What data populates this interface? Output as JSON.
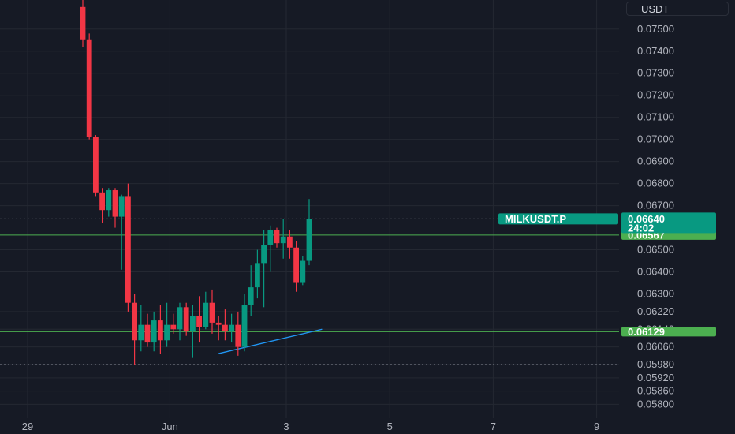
{
  "unit_label": "USDT",
  "colors": {
    "background": "#161a25",
    "up": "#089981",
    "down": "#f23645",
    "level_line": "#4caf50",
    "trend_line": "#2196f3",
    "grid": "#242832",
    "axis_text": "#b2b5be"
  },
  "chart_data": {
    "type": "candlestick",
    "symbol": "MILKUSDT.P",
    "ylim": [
      0.0578,
      0.0756
    ],
    "y_ticks": [
      {
        "label": "0.07500",
        "value": 0.075
      },
      {
        "label": "0.07400",
        "value": 0.074
      },
      {
        "label": "0.07300",
        "value": 0.073
      },
      {
        "label": "0.07200",
        "value": 0.072
      },
      {
        "label": "0.07100",
        "value": 0.071
      },
      {
        "label": "0.07000",
        "value": 0.07
      },
      {
        "label": "0.06900",
        "value": 0.069
      },
      {
        "label": "0.06800",
        "value": 0.068
      },
      {
        "label": "0.06700",
        "value": 0.067
      },
      {
        "label": "0.06500",
        "value": 0.065
      },
      {
        "label": "0.06400",
        "value": 0.064
      },
      {
        "label": "0.06300",
        "value": 0.063
      },
      {
        "label": "0.06220",
        "value": 0.0622
      },
      {
        "label": "0.06140",
        "value": 0.0614
      },
      {
        "label": "0.06060",
        "value": 0.0606
      },
      {
        "label": "0.05980",
        "value": 0.0598
      },
      {
        "label": "0.05920",
        "value": 0.0592
      },
      {
        "label": "0.05860",
        "value": 0.0586
      },
      {
        "label": "0.05800",
        "value": 0.058
      }
    ],
    "x_ticks": [
      {
        "label": "29",
        "index": 0
      },
      {
        "label": "Jun",
        "index": 22
      },
      {
        "label": "3",
        "index": 40
      },
      {
        "label": "5",
        "index": 56
      },
      {
        "label": "7",
        "index": 72
      },
      {
        "label": "9",
        "index": 88
      }
    ],
    "candles": [
      {
        "o": 0.076,
        "h": 0.0765,
        "l": 0.0742,
        "c": 0.0745
      },
      {
        "o": 0.0745,
        "h": 0.0748,
        "l": 0.07,
        "c": 0.0701
      },
      {
        "o": 0.0701,
        "h": 0.0702,
        "l": 0.0674,
        "c": 0.0676
      },
      {
        "o": 0.0676,
        "h": 0.0678,
        "l": 0.0662,
        "c": 0.0668
      },
      {
        "o": 0.0668,
        "h": 0.0678,
        "l": 0.0665,
        "c": 0.0677
      },
      {
        "o": 0.0677,
        "h": 0.0678,
        "l": 0.066,
        "c": 0.0665
      },
      {
        "o": 0.0665,
        "h": 0.0675,
        "l": 0.0641,
        "c": 0.0674
      },
      {
        "o": 0.0674,
        "h": 0.068,
        "l": 0.0622,
        "c": 0.0626
      },
      {
        "o": 0.0626,
        "h": 0.063,
        "l": 0.0598,
        "c": 0.0609
      },
      {
        "o": 0.0609,
        "h": 0.0625,
        "l": 0.0604,
        "c": 0.0616
      },
      {
        "o": 0.0616,
        "h": 0.0621,
        "l": 0.0606,
        "c": 0.0608
      },
      {
        "o": 0.0608,
        "h": 0.0622,
        "l": 0.0604,
        "c": 0.0618
      },
      {
        "o": 0.0618,
        "h": 0.0625,
        "l": 0.0603,
        "c": 0.0609
      },
      {
        "o": 0.0609,
        "h": 0.0626,
        "l": 0.0606,
        "c": 0.0616
      },
      {
        "o": 0.0616,
        "h": 0.0621,
        "l": 0.0612,
        "c": 0.0614
      },
      {
        "o": 0.0614,
        "h": 0.0626,
        "l": 0.0609,
        "c": 0.0624
      },
      {
        "o": 0.0624,
        "h": 0.0626,
        "l": 0.0611,
        "c": 0.0613
      },
      {
        "o": 0.0613,
        "h": 0.0625,
        "l": 0.0601,
        "c": 0.062
      },
      {
        "o": 0.062,
        "h": 0.0629,
        "l": 0.0608,
        "c": 0.0615
      },
      {
        "o": 0.0615,
        "h": 0.0631,
        "l": 0.0614,
        "c": 0.0626
      },
      {
        "o": 0.0626,
        "h": 0.0632,
        "l": 0.0612,
        "c": 0.0617
      },
      {
        "o": 0.0617,
        "h": 0.062,
        "l": 0.0609,
        "c": 0.0616
      },
      {
        "o": 0.0616,
        "h": 0.0623,
        "l": 0.0609,
        "c": 0.0613
      },
      {
        "o": 0.0613,
        "h": 0.0621,
        "l": 0.0608,
        "c": 0.0616
      },
      {
        "o": 0.0616,
        "h": 0.0622,
        "l": 0.0602,
        "c": 0.0606
      },
      {
        "o": 0.0606,
        "h": 0.063,
        "l": 0.0604,
        "c": 0.0625
      },
      {
        "o": 0.0625,
        "h": 0.0643,
        "l": 0.062,
        "c": 0.0633
      },
      {
        "o": 0.0633,
        "h": 0.065,
        "l": 0.0628,
        "c": 0.0644
      },
      {
        "o": 0.0644,
        "h": 0.0659,
        "l": 0.0624,
        "c": 0.0652
      },
      {
        "o": 0.0652,
        "h": 0.0661,
        "l": 0.064,
        "c": 0.0659
      },
      {
        "o": 0.0659,
        "h": 0.066,
        "l": 0.0651,
        "c": 0.0653
      },
      {
        "o": 0.0653,
        "h": 0.0664,
        "l": 0.0646,
        "c": 0.0656
      },
      {
        "o": 0.0656,
        "h": 0.0659,
        "l": 0.0646,
        "c": 0.0651
      },
      {
        "o": 0.0651,
        "h": 0.0654,
        "l": 0.0631,
        "c": 0.0635
      },
      {
        "o": 0.0635,
        "h": 0.0647,
        "l": 0.0634,
        "c": 0.0645
      },
      {
        "o": 0.0645,
        "h": 0.0673,
        "l": 0.0643,
        "c": 0.0664
      }
    ],
    "horizontal_levels": [
      {
        "value": 0.06567,
        "label": "0.06567"
      },
      {
        "value": 0.06129,
        "label": "0.06129"
      }
    ],
    "dotted_levels": [
      0.0664,
      0.0598
    ],
    "trend_line": {
      "from": {
        "index": 21,
        "value": 0.0603
      },
      "to": {
        "index": 37,
        "value": 0.0614
      }
    },
    "last_price": {
      "symbol": "MILKUSDT.P",
      "price": "0.06640",
      "countdown": "24:02",
      "value": 0.0664
    }
  }
}
